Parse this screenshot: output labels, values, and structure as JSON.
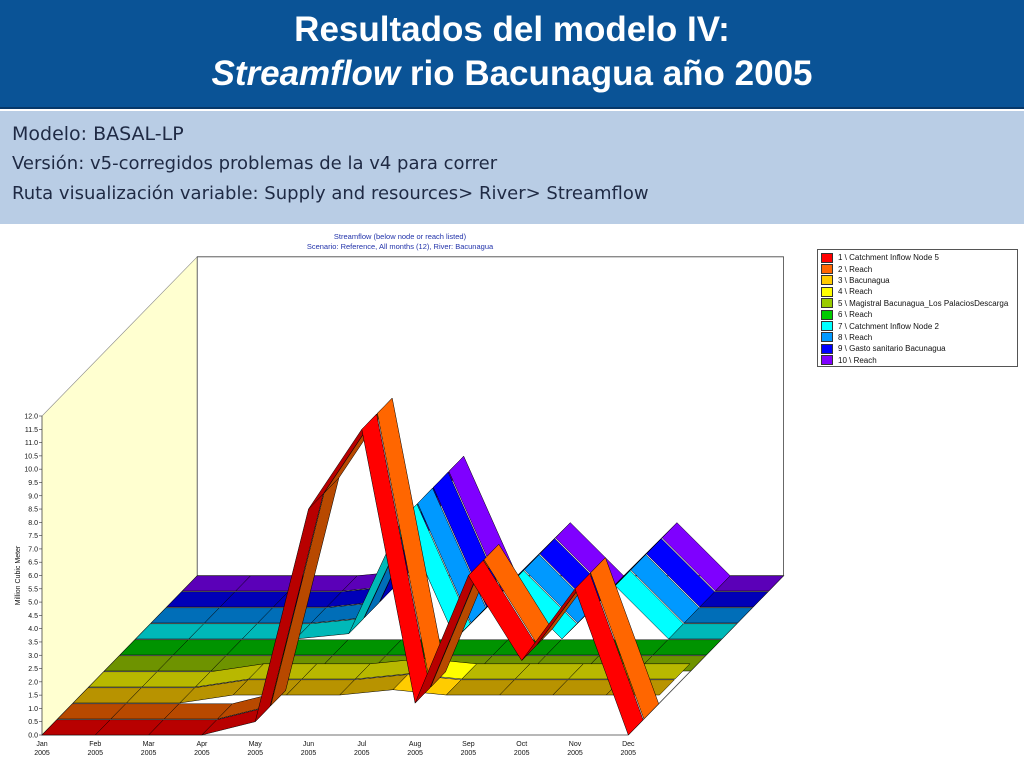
{
  "slide": {
    "title_line1": "Resultados del modelo IV:",
    "title_italic": "Streamflow",
    "title_rest": " rio Bacunagua año 2005",
    "model_line": "Modelo: BASAL-LP",
    "version_line": "Versión: v5-corregidos problemas de la v4 para correr",
    "route_line": "Ruta visualización variable: Supply and resources> River> Streamflow",
    "header_color": "#0a5396",
    "info_color": "#b9cde5"
  },
  "chart_data": {
    "type": "area",
    "title": "Streamflow (below node or reach listed)",
    "subtitle": "Scenario: Reference,  All months (12),  River: Bacunagua",
    "ylabel": "Million Cubic Meter",
    "xlabel": "",
    "ylim": [
      0,
      12
    ],
    "yticks": [
      "0.0",
      "0.5",
      "1.0",
      "1.5",
      "2.0",
      "2.5",
      "3.0",
      "3.5",
      "4.0",
      "4.5",
      "5.0",
      "5.5",
      "6.0",
      "6.5",
      "7.0",
      "7.5",
      "8.0",
      "8.5",
      "9.0",
      "9.5",
      "10.0",
      "10.5",
      "11.0",
      "11.5",
      "12.0"
    ],
    "categories": [
      {
        "month": "Jan",
        "year": "2005"
      },
      {
        "month": "Feb",
        "year": "2005"
      },
      {
        "month": "Mar",
        "year": "2005"
      },
      {
        "month": "Apr",
        "year": "2005"
      },
      {
        "month": "May",
        "year": "2005"
      },
      {
        "month": "Jun",
        "year": "2005"
      },
      {
        "month": "Jul",
        "year": "2005"
      },
      {
        "month": "Aug",
        "year": "2005"
      },
      {
        "month": "Sep",
        "year": "2005"
      },
      {
        "month": "Oct",
        "year": "2005"
      },
      {
        "month": "Nov",
        "year": "2005"
      },
      {
        "month": "Dec",
        "year": "2005"
      }
    ],
    "legend_position": "right",
    "series": [
      {
        "name": "1 \\ Catchment Inflow Node 5",
        "color": "#ff0000",
        "values": [
          0,
          0,
          0,
          0,
          0.5,
          8.5,
          11.5,
          1.2,
          6.0,
          2.8,
          5.5,
          0
        ]
      },
      {
        "name": "2 \\ Reach",
        "color": "#ff6600",
        "values": [
          0,
          0,
          0,
          0,
          0.5,
          8.5,
          11.5,
          1.2,
          6.0,
          2.8,
          5.5,
          0
        ]
      },
      {
        "name": "3 \\ Bacunagua",
        "color": "#ffcc00",
        "values": [
          0,
          0,
          0,
          0.3,
          0.3,
          0.3,
          0.5,
          0.3,
          0.3,
          0.3,
          0.3,
          0.3
        ]
      },
      {
        "name": "4 \\ Reach",
        "color": "#ffff00",
        "values": [
          0,
          0,
          0,
          0.3,
          0.3,
          0.3,
          0.5,
          0.3,
          0.3,
          0.3,
          0.3,
          0.3
        ]
      },
      {
        "name": "5 \\ Magistral Bacunagua_Los PalaciosDescarga",
        "color": "#99cc00",
        "values": [
          0,
          0,
          0,
          0,
          0,
          0,
          0,
          0,
          0,
          0,
          0,
          0
        ]
      },
      {
        "name": "6 \\ Reach",
        "color": "#00cc00",
        "values": [
          0,
          0,
          0,
          0,
          0,
          0,
          0,
          0,
          0,
          0,
          0,
          0
        ]
      },
      {
        "name": "7 \\ Catchment Inflow Node 2",
        "color": "#00ffff",
        "values": [
          0,
          0,
          0,
          0,
          0.2,
          4.5,
          0,
          2.0,
          0,
          2.0,
          0,
          0
        ]
      },
      {
        "name": "8 \\ Reach",
        "color": "#0099ff",
        "values": [
          0,
          0,
          0,
          0,
          0.2,
          4.5,
          0,
          2.0,
          0,
          2.0,
          0,
          0
        ]
      },
      {
        "name": "9 \\ Gasto sanitario Bacunagua",
        "color": "#0000ff",
        "values": [
          0,
          0,
          0,
          0,
          0.2,
          4.5,
          0,
          2.0,
          0,
          2.0,
          0,
          0
        ]
      },
      {
        "name": "10 \\ Reach",
        "color": "#7f00ff",
        "values": [
          0,
          0,
          0,
          0,
          0.2,
          4.5,
          0,
          2.0,
          0,
          2.0,
          0,
          0
        ]
      }
    ]
  }
}
